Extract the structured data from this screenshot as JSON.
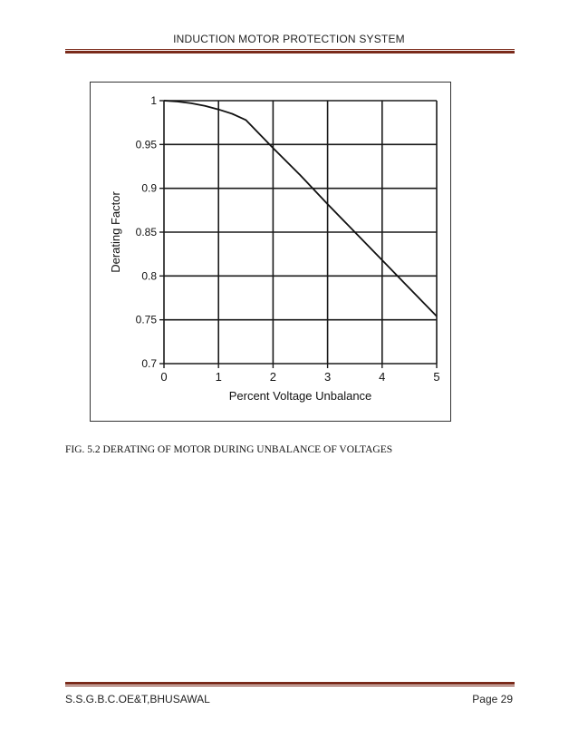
{
  "header": {
    "title": "INDUCTION MOTOR PROTECTION SYSTEM"
  },
  "caption": "FIG. 5.2  DERATING OF MOTOR DURING UNBALANCE OF VOLTAGES",
  "footer": {
    "left": "S.S.G.B.C.OE&T,BHUSAWAL",
    "right": "Page 29"
  },
  "colors": {
    "rule": "#7a2a1a",
    "grid": "#1a1a1a",
    "line": "#111111"
  },
  "chart_data": {
    "type": "line",
    "title": "",
    "xlabel": "Percent Voltage Unbalance",
    "ylabel": "Derating Factor",
    "xlim": [
      0,
      5
    ],
    "ylim": [
      0.7,
      1.0
    ],
    "xticks": [
      "0",
      "1",
      "2",
      "3",
      "4",
      "5"
    ],
    "yticks": [
      "1",
      "0.95",
      "0.9",
      "0.85",
      "0.8",
      "0.75",
      "0.7"
    ],
    "grid": true,
    "series": [
      {
        "x": [
          0,
          0.25,
          0.5,
          0.75,
          1.0,
          1.25,
          1.5,
          2.0,
          2.5,
          3.0,
          3.5,
          4.0,
          4.5,
          5.0
        ],
        "values": [
          1.0,
          0.999,
          0.997,
          0.994,
          0.99,
          0.985,
          0.978,
          0.946,
          0.915,
          0.882,
          0.85,
          0.818,
          0.786,
          0.754
        ]
      }
    ]
  }
}
